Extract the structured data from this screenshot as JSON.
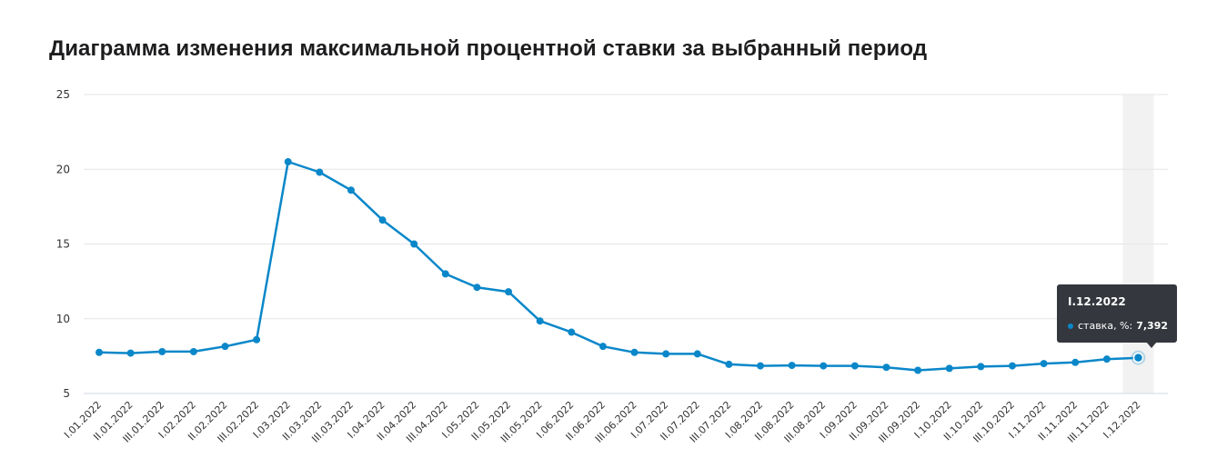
{
  "title": "Диаграмма изменения максимальной процентной ставки за выбранный период",
  "colors": {
    "line": "#0a87c9",
    "grid": "#e6e6e6",
    "highlight": "#f2f2f2",
    "tooltip_bg": "#34373d"
  },
  "chart_data": {
    "type": "line",
    "title": "Диаграмма изменения максимальной процентной ставки за выбранный период",
    "xlabel": "",
    "ylabel": "",
    "ylim": [
      5,
      25
    ],
    "yticks": [
      5,
      10,
      15,
      20,
      25
    ],
    "grid": true,
    "categories": [
      "I.01.2022",
      "II.01.2022",
      "III.01.2022",
      "I.02.2022",
      "II.02.2022",
      "III.02.2022",
      "I.03.2022",
      "II.03.2022",
      "III.03.2022",
      "I.04.2022",
      "II.04.2022",
      "III.04.2022",
      "I.05.2022",
      "II.05.2022",
      "III.05.2022",
      "I.06.2022",
      "II.06.2022",
      "III.06.2022",
      "I.07.2022",
      "II.07.2022",
      "III.07.2022",
      "I.08.2022",
      "II.08.2022",
      "III.08.2022",
      "I.09.2022",
      "II.09.2022",
      "III.09.2022",
      "I.10.2022",
      "II.10.2022",
      "III.10.2022",
      "I.11.2022",
      "II.11.2022",
      "III.11.2022",
      "I.12.2022"
    ],
    "series": [
      {
        "name": "ставка, %",
        "values": [
          7.75,
          7.7,
          7.8,
          7.8,
          8.15,
          8.6,
          20.5,
          19.8,
          18.6,
          16.6,
          15.0,
          13.0,
          12.1,
          11.8,
          9.85,
          9.1,
          8.15,
          7.75,
          7.65,
          7.65,
          6.95,
          6.85,
          6.88,
          6.85,
          6.85,
          6.75,
          6.55,
          6.68,
          6.8,
          6.85,
          7.0,
          7.08,
          7.3,
          7.392
        ]
      }
    ]
  },
  "tooltip": {
    "title": "I.12.2022",
    "label": "ставка, %:",
    "value": "7,392"
  }
}
